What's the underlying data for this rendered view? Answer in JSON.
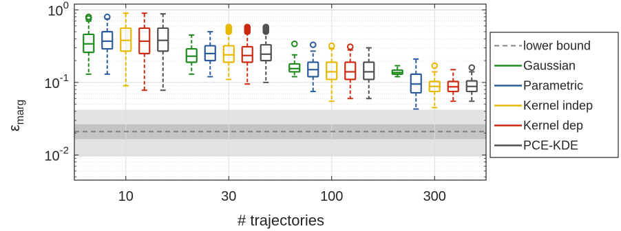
{
  "chart_data": {
    "type": "boxplot",
    "xlabel": "# trajectories",
    "ylabel": {
      "base": "ε",
      "sub": "marg"
    },
    "yscale": "log",
    "ylim": [
      0.0045,
      1.2
    ],
    "yticks": [
      {
        "value": 0.01,
        "base": "10",
        "exp": "-2"
      },
      {
        "value": 0.1,
        "base": "10",
        "exp": "-1"
      },
      {
        "value": 1,
        "base": "10",
        "exp": "0"
      }
    ],
    "grid": true,
    "legend_position": "outside-right",
    "categories": [
      "10",
      "30",
      "100",
      "300"
    ],
    "lower_bound": {
      "name": "lower bound",
      "value": 0.021,
      "band_inner": [
        0.0165,
        0.0265
      ],
      "band_outer": [
        0.0095,
        0.042
      ],
      "color": "#808080"
    },
    "series": [
      {
        "name": "Gaussian",
        "color": "#1f8a1f",
        "boxes": [
          {
            "whislo": 0.13,
            "q1": 0.26,
            "med": 0.34,
            "q3": 0.46,
            "whishi": 0.7,
            "fliers": [
              0.76,
              0.8
            ]
          },
          {
            "whislo": 0.13,
            "q1": 0.19,
            "med": 0.23,
            "q3": 0.29,
            "whishi": 0.45,
            "fliers": []
          },
          {
            "whislo": 0.12,
            "q1": 0.14,
            "med": 0.155,
            "q3": 0.18,
            "whishi": 0.24,
            "fliers": [
              0.34
            ]
          },
          {
            "whislo": 0.12,
            "q1": 0.13,
            "med": 0.137,
            "q3": 0.148,
            "whishi": 0.17,
            "fliers": []
          }
        ]
      },
      {
        "name": "Parametric",
        "color": "#2b5b9a",
        "boxes": [
          {
            "whislo": 0.13,
            "q1": 0.29,
            "med": 0.37,
            "q3": 0.5,
            "whishi": 0.75,
            "fliers": [
              0.8
            ]
          },
          {
            "whislo": 0.12,
            "q1": 0.2,
            "med": 0.25,
            "q3": 0.32,
            "whishi": 0.5,
            "fliers": []
          },
          {
            "whislo": 0.075,
            "q1": 0.12,
            "med": 0.15,
            "q3": 0.19,
            "whishi": 0.27,
            "fliers": [
              0.33
            ]
          },
          {
            "whislo": 0.043,
            "q1": 0.072,
            "med": 0.095,
            "q3": 0.13,
            "whishi": 0.21,
            "fliers": []
          }
        ]
      },
      {
        "name": "Kernel indep",
        "color": "#e8b800",
        "boxes": [
          {
            "whislo": 0.09,
            "q1": 0.27,
            "med": 0.38,
            "q3": 0.56,
            "whishi": 0.9,
            "fliers": []
          },
          {
            "whislo": 0.11,
            "q1": 0.19,
            "med": 0.24,
            "q3": 0.32,
            "whishi": 0.47,
            "fliers": [
              0.5,
              0.52,
              0.54,
              0.56,
              0.58
            ]
          },
          {
            "whislo": 0.055,
            "q1": 0.11,
            "med": 0.14,
            "q3": 0.19,
            "whishi": 0.29,
            "fliers": [
              0.32
            ]
          },
          {
            "whislo": 0.045,
            "q1": 0.075,
            "med": 0.088,
            "q3": 0.103,
            "whishi": 0.14,
            "fliers": [
              0.17
            ]
          }
        ]
      },
      {
        "name": "Kernel dep",
        "color": "#cc2a10",
        "boxes": [
          {
            "whislo": 0.078,
            "q1": 0.25,
            "med": 0.37,
            "q3": 0.56,
            "whishi": 0.9,
            "fliers": []
          },
          {
            "whislo": 0.095,
            "q1": 0.19,
            "med": 0.235,
            "q3": 0.31,
            "whishi": 0.47,
            "fliers": [
              0.5,
              0.52,
              0.54,
              0.56,
              0.58
            ]
          },
          {
            "whislo": 0.06,
            "q1": 0.11,
            "med": 0.14,
            "q3": 0.19,
            "whishi": 0.28,
            "fliers": [
              0.31
            ]
          },
          {
            "whislo": 0.055,
            "q1": 0.075,
            "med": 0.087,
            "q3": 0.103,
            "whishi": 0.15,
            "fliers": []
          }
        ]
      },
      {
        "name": "PCE-KDE",
        "color": "#505050",
        "boxes": [
          {
            "whislo": 0.078,
            "q1": 0.27,
            "med": 0.38,
            "q3": 0.56,
            "whishi": 0.88,
            "fliers": []
          },
          {
            "whislo": 0.1,
            "q1": 0.2,
            "med": 0.245,
            "q3": 0.33,
            "whishi": 0.48,
            "fliers": [
              0.5,
              0.52,
              0.54,
              0.56,
              0.58
            ]
          },
          {
            "whislo": 0.06,
            "q1": 0.11,
            "med": 0.14,
            "q3": 0.19,
            "whishi": 0.3,
            "fliers": []
          },
          {
            "whislo": 0.055,
            "q1": 0.075,
            "med": 0.088,
            "q3": 0.105,
            "whishi": 0.14,
            "fliers": [
              0.16
            ]
          }
        ]
      }
    ]
  }
}
